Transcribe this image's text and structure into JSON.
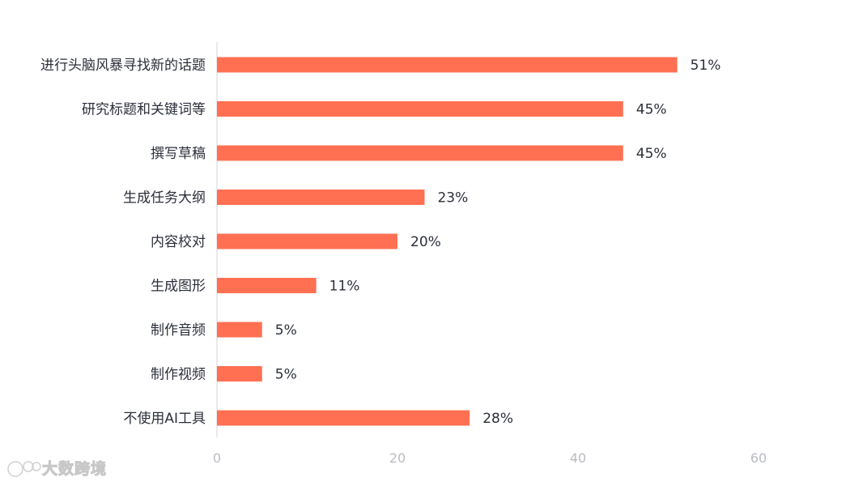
{
  "chart_data": {
    "type": "bar",
    "orientation": "horizontal",
    "categories": [
      "进行头脑风暴寻找新的话题",
      "研究标题和关键词等",
      "撰写草稿",
      "生成任务大纲",
      "内容校对",
      "生成图形",
      "制作音频",
      "制作视频",
      "不使用AI工具"
    ],
    "values": [
      51,
      45,
      45,
      23,
      20,
      11,
      5,
      5,
      28
    ],
    "value_labels": [
      "51%",
      "45%",
      "45%",
      "23%",
      "20%",
      "11%",
      "5%",
      "5%",
      "28%"
    ],
    "xlim": [
      0,
      60
    ],
    "xticks": [
      0,
      20,
      40,
      60
    ],
    "grid": false,
    "bar_color": "#ff7052"
  },
  "watermark": {
    "text": "大数跨境"
  }
}
